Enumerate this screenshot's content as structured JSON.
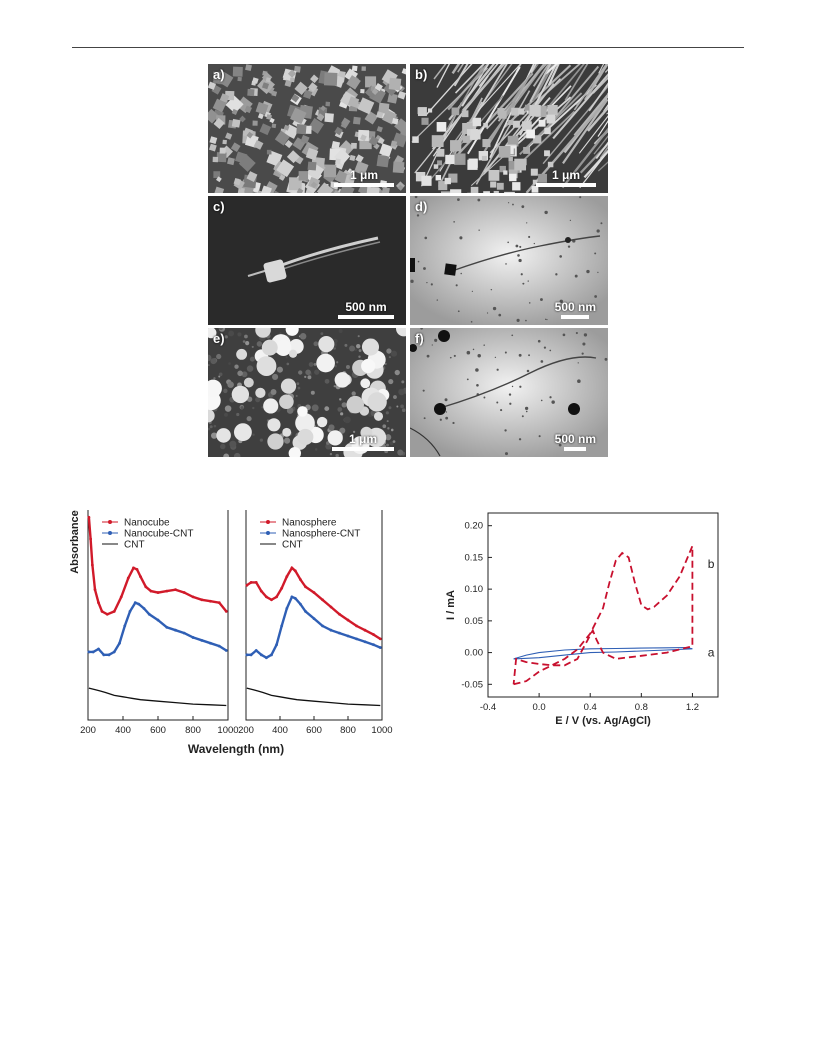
{
  "panels": [
    {
      "label": "a)",
      "scale": "1 μm"
    },
    {
      "label": "b)",
      "scale": "1 μm"
    },
    {
      "label": "c)",
      "scale": "500 nm"
    },
    {
      "label": "d)",
      "scale": "500 nm"
    },
    {
      "label": "e)",
      "scale": "1 μm"
    },
    {
      "label": "f)",
      "scale": "500 nm"
    }
  ],
  "chart_data": [
    {
      "type": "line",
      "ylabel": "Absorbance",
      "xlabel": "Wavelength (nm)",
      "xlim": [
        200,
        1000
      ],
      "xticks": [
        "200",
        "400",
        "600",
        "800",
        "1000"
      ],
      "grid": false,
      "legend_position": "top-left",
      "subplots": [
        {
          "series": [
            {
              "name": "Nanocube",
              "color": "#d11a2a",
              "x": [
                205,
                215,
                225,
                240,
                260,
                280,
                310,
                350,
                390,
                430,
                460,
                480,
                500,
                530,
                560,
                600,
                650,
                700,
                750,
                800,
                850,
                900,
                950,
                990
              ],
              "y": [
                1.55,
                1.4,
                1.22,
                1.05,
                0.96,
                0.9,
                0.88,
                0.9,
                1.0,
                1.13,
                1.2,
                1.19,
                1.14,
                1.07,
                1.04,
                1.03,
                1.04,
                1.05,
                1.03,
                1.0,
                0.98,
                0.97,
                0.96,
                0.9
              ]
            },
            {
              "name": "Nanocube-CNT",
              "color": "#2f5fb5",
              "x": [
                205,
                230,
                260,
                290,
                320,
                350,
                380,
                410,
                440,
                470,
                490,
                520,
                550,
                600,
                650,
                700,
                750,
                800,
                850,
                900,
                950,
                990
              ],
              "y": [
                0.62,
                0.62,
                0.64,
                0.6,
                0.6,
                0.62,
                0.68,
                0.8,
                0.9,
                0.96,
                0.95,
                0.92,
                0.88,
                0.84,
                0.79,
                0.77,
                0.75,
                0.72,
                0.7,
                0.68,
                0.66,
                0.63
              ]
            },
            {
              "name": "CNT",
              "color": "#111111",
              "x": [
                205,
                240,
                270,
                300,
                350,
                400,
                450,
                500,
                600,
                700,
                800,
                900,
                990
              ],
              "y": [
                0.37,
                0.36,
                0.35,
                0.34,
                0.32,
                0.31,
                0.3,
                0.29,
                0.28,
                0.27,
                0.26,
                0.255,
                0.25
              ]
            }
          ]
        },
        {
          "series": [
            {
              "name": "Nanosphere",
              "color": "#d11a2a",
              "x": [
                205,
                230,
                260,
                290,
                320,
                350,
                380,
                410,
                440,
                470,
                490,
                520,
                550,
                600,
                650,
                700,
                750,
                800,
                850,
                900,
                950,
                990
              ],
              "y": [
                1.08,
                1.1,
                1.1,
                1.04,
                1.0,
                0.98,
                1.0,
                1.06,
                1.14,
                1.2,
                1.18,
                1.12,
                1.07,
                1.03,
                0.98,
                0.93,
                0.88,
                0.84,
                0.8,
                0.77,
                0.74,
                0.71
              ]
            },
            {
              "name": "Nanosphere-CNT",
              "color": "#2f5fb5",
              "x": [
                205,
                230,
                260,
                290,
                320,
                350,
                380,
                410,
                440,
                470,
                490,
                520,
                550,
                600,
                650,
                700,
                750,
                800,
                850,
                900,
                950,
                990
              ],
              "y": [
                0.6,
                0.6,
                0.63,
                0.6,
                0.58,
                0.6,
                0.67,
                0.8,
                0.92,
                1.0,
                0.99,
                0.95,
                0.9,
                0.85,
                0.8,
                0.77,
                0.75,
                0.73,
                0.71,
                0.69,
                0.67,
                0.65
              ]
            },
            {
              "name": "CNT",
              "color": "#111111",
              "x": [
                205,
                240,
                270,
                300,
                350,
                400,
                450,
                500,
                600,
                700,
                800,
                900,
                990
              ],
              "y": [
                0.37,
                0.36,
                0.35,
                0.34,
                0.32,
                0.31,
                0.3,
                0.29,
                0.28,
                0.27,
                0.26,
                0.255,
                0.25
              ]
            }
          ]
        }
      ]
    },
    {
      "type": "line",
      "xlabel": "E / V (vs. Ag/AgCl)",
      "ylabel": "I / mA",
      "xlim": [
        -0.4,
        1.4
      ],
      "ylim": [
        -0.07,
        0.22
      ],
      "xticks": [
        "-0.4",
        "0.0",
        "0.4",
        "0.8",
        "1.2"
      ],
      "yticks": [
        "-0.05",
        "0.00",
        "0.05",
        "0.10",
        "0.15",
        "0.20"
      ],
      "grid": false,
      "series": [
        {
          "name": "a",
          "color": "#2f5fb5",
          "dash": "solid",
          "x": [
            -0.2,
            0.0,
            0.2,
            0.4,
            0.6,
            0.8,
            1.0,
            1.2,
            1.15,
            1.0,
            0.8,
            0.6,
            0.4,
            0.2,
            0.0,
            -0.1,
            -0.2
          ],
          "y": [
            -0.01,
            -0.008,
            -0.004,
            0.0,
            0.001,
            0.0025,
            0.004,
            0.006,
            0.008,
            0.0075,
            0.007,
            0.0065,
            0.006,
            0.004,
            0.0,
            -0.004,
            -0.01
          ]
        },
        {
          "name": "b",
          "color": "#c8102e",
          "dash": "dashed",
          "x": [
            -0.2,
            -0.1,
            0.0,
            0.1,
            0.2,
            0.3,
            0.4,
            0.5,
            0.55,
            0.6,
            0.65,
            0.7,
            0.75,
            0.8,
            0.85,
            0.9,
            1.0,
            1.1,
            1.2,
            1.2,
            1.1,
            1.0,
            0.8,
            0.6,
            0.5,
            0.45,
            0.42,
            0.38,
            0.3,
            0.2,
            0.1,
            0.0,
            -0.1,
            -0.18,
            -0.2
          ],
          "y": [
            -0.05,
            -0.045,
            -0.03,
            -0.02,
            -0.01,
            0.005,
            0.03,
            0.07,
            0.11,
            0.145,
            0.157,
            0.15,
            0.11,
            0.075,
            0.068,
            0.072,
            0.09,
            0.12,
            0.168,
            0.01,
            0.005,
            0.0,
            -0.005,
            -0.01,
            0.0,
            0.02,
            0.035,
            0.02,
            -0.01,
            -0.02,
            -0.02,
            -0.018,
            -0.015,
            -0.01,
            -0.05
          ]
        }
      ],
      "annotations": [
        {
          "text": "a",
          "x": 1.32,
          "y": 0.0
        },
        {
          "text": "b",
          "x": 1.32,
          "y": 0.14
        }
      ]
    }
  ]
}
